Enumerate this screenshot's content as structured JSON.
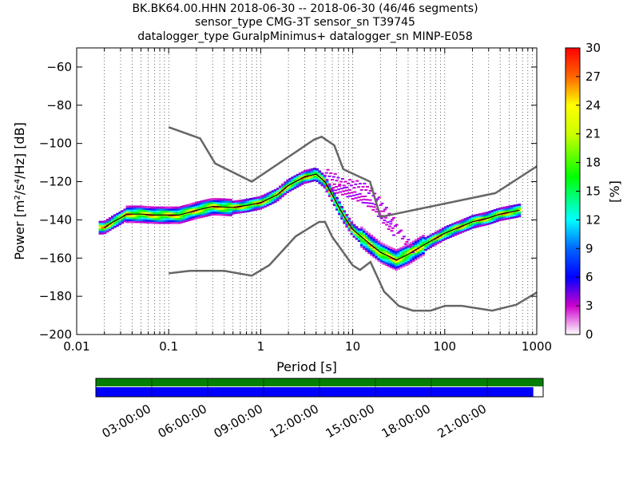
{
  "title_lines": [
    "BK.BK64.00.HHN   2018-06-30 -- 2018-06-30  (46/46 segments)",
    "sensor_type CMG-3T sensor_sn T39745",
    "datalogger_type GuralpMinimus+ datalogger_sn MINP-E058"
  ],
  "chart_data": {
    "type": "heatmap",
    "xlabel": "Period [s]",
    "ylabel": "Power [m²/s⁴/Hz] [dB]",
    "xscale": "log",
    "xlim": [
      0.01,
      1000
    ],
    "ylim": [
      -200,
      -50
    ],
    "x_ticks": [
      0.01,
      0.1,
      1,
      10,
      100,
      1000
    ],
    "x_tick_labels": [
      "0.01",
      "0.1",
      "1",
      "10",
      "100",
      "1000"
    ],
    "y_ticks": [
      -200,
      -180,
      -160,
      -140,
      -120,
      -100,
      -80,
      -60
    ],
    "y_tick_labels": [
      "−200",
      "−180",
      "−160",
      "−140",
      "−120",
      "−100",
      "−80",
      "−60"
    ],
    "grid": "dotted vertical",
    "colorbar": {
      "label": "[%]",
      "range": [
        0,
        30
      ],
      "ticks": [
        0,
        3,
        6,
        9,
        12,
        15,
        18,
        21,
        24,
        27,
        30
      ],
      "tick_labels": [
        "0",
        "3",
        "6",
        "9",
        "12",
        "15",
        "18",
        "21",
        "24",
        "27",
        "30"
      ]
    },
    "nhnm": [
      [
        0.1,
        -91.5
      ],
      [
        0.22,
        -97.4
      ],
      [
        0.32,
        -110.5
      ],
      [
        0.8,
        -120
      ],
      [
        3.8,
        -98
      ],
      [
        4.6,
        -96.5
      ],
      [
        6.3,
        -101
      ],
      [
        7.9,
        -113.5
      ],
      [
        15.4,
        -120
      ],
      [
        20,
        -138.5
      ],
      [
        354.8,
        -126
      ],
      [
        1000,
        -112
      ]
    ],
    "nlnm": [
      [
        0.1,
        -168
      ],
      [
        0.17,
        -166.7
      ],
      [
        0.4,
        -166.7
      ],
      [
        0.8,
        -169.2
      ],
      [
        1.24,
        -163.7
      ],
      [
        2.4,
        -148.6
      ],
      [
        4.3,
        -141.1
      ],
      [
        5,
        -141.1
      ],
      [
        6,
        -149
      ],
      [
        10,
        -163.8
      ],
      [
        12,
        -166.2
      ],
      [
        15.6,
        -162
      ],
      [
        21.9,
        -177.5
      ],
      [
        31.6,
        -185
      ],
      [
        45,
        -187.5
      ],
      [
        70,
        -187.5
      ],
      [
        101,
        -185
      ],
      [
        154,
        -185
      ],
      [
        328,
        -187.5
      ],
      [
        600,
        -184.4
      ],
      [
        1000,
        -178
      ]
    ],
    "mode_curve": [
      [
        0.02,
        -144
      ],
      [
        0.025,
        -141
      ],
      [
        0.03,
        -139
      ],
      [
        0.035,
        -137
      ],
      [
        0.05,
        -137
      ],
      [
        0.07,
        -137.5
      ],
      [
        0.1,
        -137.5
      ],
      [
        0.13,
        -137.5
      ],
      [
        0.2,
        -135
      ],
      [
        0.3,
        -133
      ],
      [
        0.5,
        -133.5
      ],
      [
        0.7,
        -132.5
      ],
      [
        1,
        -131
      ],
      [
        1.5,
        -127
      ],
      [
        2,
        -122
      ],
      [
        3,
        -117.5
      ],
      [
        4,
        -116
      ],
      [
        5,
        -120
      ],
      [
        6,
        -127
      ],
      [
        8,
        -138
      ],
      [
        10,
        -145
      ],
      [
        14,
        -151
      ],
      [
        20,
        -157
      ],
      [
        30,
        -161
      ],
      [
        40,
        -158
      ],
      [
        60,
        -153
      ],
      [
        100,
        -147
      ],
      [
        200,
        -141
      ],
      [
        300,
        -139
      ],
      [
        400,
        -137
      ],
      [
        650,
        -135
      ]
    ],
    "upper_scatter": [
      [
        5,
        -115
      ],
      [
        6,
        -117
      ],
      [
        7,
        -119
      ],
      [
        8,
        -121
      ],
      [
        10,
        -121
      ],
      [
        12,
        -122
      ],
      [
        15,
        -124
      ],
      [
        18,
        -128
      ],
      [
        22,
        -134
      ],
      [
        28,
        -141
      ],
      [
        35,
        -149
      ],
      [
        45,
        -155
      ]
    ],
    "mid_scatter": [
      [
        6,
        -123
      ],
      [
        8,
        -125
      ],
      [
        10,
        -127
      ],
      [
        13,
        -129
      ],
      [
        17,
        -133
      ],
      [
        22,
        -140
      ],
      [
        28,
        -146
      ]
    ],
    "state_of_health": {
      "time_ticks": [
        "03:00:00",
        "06:00:00",
        "09:00:00",
        "12:00:00",
        "15:00:00",
        "18:00:00",
        "21:00:00"
      ],
      "coverage_fraction": 0.978,
      "colors": {
        "data_available": "#008000",
        "psd_used": "#0000ff"
      }
    }
  }
}
